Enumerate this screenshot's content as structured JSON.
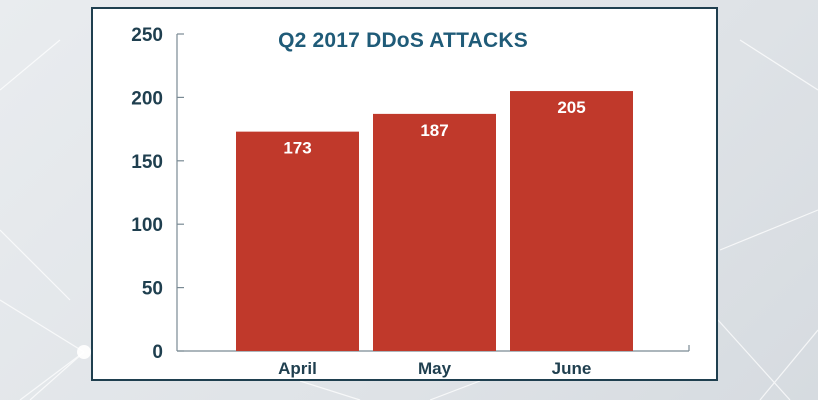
{
  "chart_data": {
    "type": "bar",
    "title": "Q2 2017 DDoS ATTACKS",
    "categories": [
      "April",
      "May",
      "June"
    ],
    "values": [
      173,
      187,
      205
    ],
    "data_labels": [
      "173",
      "187",
      "205"
    ],
    "yticks": [
      "0",
      "50",
      "100",
      "150",
      "200",
      "250"
    ],
    "ylim": [
      0,
      250
    ],
    "grid": false,
    "legend": "none",
    "bar_color": "#c0392b",
    "title_color": "#1f5b78",
    "axis_text_color": "#1f3f4f"
  }
}
